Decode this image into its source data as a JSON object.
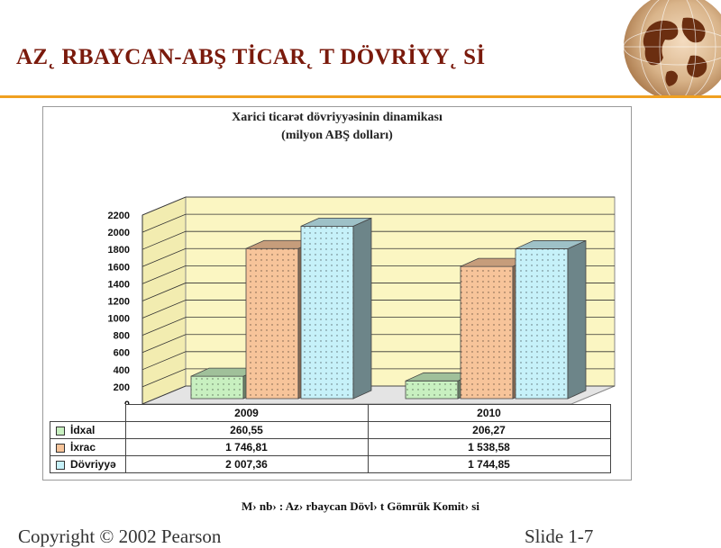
{
  "slide": {
    "title": "AZ˛ RBAYCAN-ABŞ TİCAR˛ T DÖVRİYY˛ Sİ",
    "source": "M› nb› : Az› rbaycan Dövl› t Gömrük Komit› si",
    "copyright": "Copyright © 2002 Pearson",
    "slide_number": "Slide 1-7"
  },
  "chart_data": {
    "type": "bar",
    "title": "Xarici ticarət dövriyyəsinin dinamikası",
    "subtitle": "(milyon ABŞ dolları)",
    "categories": [
      "2009",
      "2010"
    ],
    "series": [
      {
        "name": "İdxal",
        "values": [
          260.55,
          206.27
        ],
        "labels": [
          "260,55",
          "206,27"
        ],
        "color": "#c8f0c0"
      },
      {
        "name": "İxrac",
        "values": [
          1746.81,
          1538.58
        ],
        "labels": [
          "1 746,81",
          "1 538,58"
        ],
        "color": "#f7c49a"
      },
      {
        "name": "Dövriyyə",
        "values": [
          2007.36,
          1744.85
        ],
        "labels": [
          "2 007,36",
          "1 744,85"
        ],
        "color": "#c6f1f9"
      }
    ],
    "yticks": [
      "0",
      "200",
      "400",
      "600",
      "800",
      "1000",
      "1200",
      "1400",
      "1600",
      "1800",
      "2000",
      "2200"
    ],
    "ylim": [
      0,
      2200
    ],
    "grid": true,
    "legend": "table-below"
  },
  "colors": {
    "title": "#7a1a0c",
    "rule": "#f0a020",
    "wall": "#fbf6c2",
    "floor": "#e4e4e4"
  }
}
